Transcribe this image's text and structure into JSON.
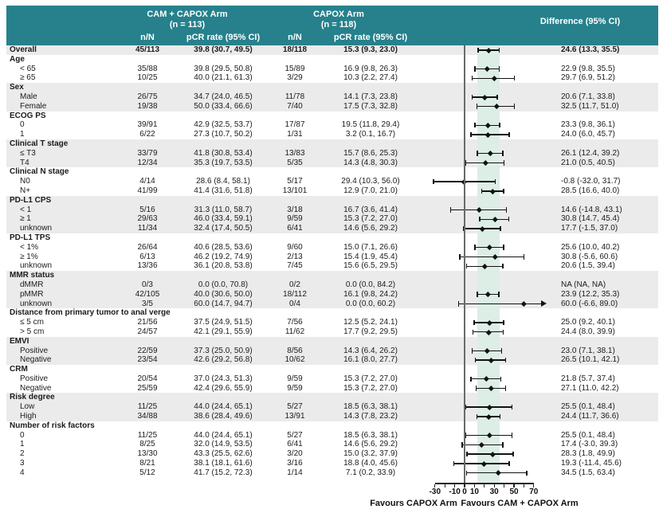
{
  "header": {
    "arm1_name": "CAM + CAPOX Arm",
    "arm1_n": "(n = 113)",
    "arm2_name": "CAPOX Arm",
    "arm2_n": "(n = 118)",
    "col_n1": "n/N",
    "col_pcr1": "pCR rate (95% CI)",
    "col_n2": "n/N",
    "col_pcr2": "pCR rate (95% CI)",
    "col_diff": "Difference (95% CI)"
  },
  "colors": {
    "header_teal": "#26818C",
    "stripe_gray": "#EBEBEB",
    "band_mint": "#DCEEE6",
    "marker_black": "#121212",
    "zero_line_gray": "#6A6A6A"
  },
  "chart_data": {
    "type": "scatter",
    "subtype": "forest-plot",
    "title": "",
    "xlabel_left": "Favours CAPOX Arm",
    "xlabel_right": "Favours CAM + CAPOX Arm",
    "axis": {
      "min": -30,
      "max": 70,
      "tick_values": [
        -30,
        -20,
        -10,
        0,
        10,
        20,
        30,
        40,
        50,
        60,
        70
      ],
      "labeled_ticks": [
        -30,
        -10,
        0,
        10,
        30,
        50,
        70
      ],
      "grid": false
    },
    "shaded_band": {
      "from": 13.3,
      "to": 35.5
    },
    "rows": [
      {
        "type": "data",
        "label": "Overall",
        "bold": true,
        "n1": "45/113",
        "pcr1": "39.8 (30.7, 49.5)",
        "n2": "18/118",
        "pcr2": "15.3 (9.3, 23.0)",
        "diff": "24.6 (13.3, 35.5)",
        "est": 24.6,
        "lo": 13.3,
        "hi": 35.5
      },
      {
        "type": "group",
        "label": "Age"
      },
      {
        "type": "data",
        "label": "< 65",
        "n1": "35/88",
        "pcr1": "39.8 (29.5, 50.8)",
        "n2": "15/89",
        "pcr2": "16.9 (9.8, 26.3)",
        "diff": "22.9 (9.8, 35.5)",
        "est": 22.9,
        "lo": 9.8,
        "hi": 35.5
      },
      {
        "type": "data",
        "label": "≥ 65",
        "n1": "10/25",
        "pcr1": "40.0 (21.1, 61.3)",
        "n2": "3/29",
        "pcr2": "10.3 (2.2, 27.4)",
        "diff": "29.7 (6.9, 51.2)",
        "est": 29.7,
        "lo": 6.9,
        "hi": 51.2
      },
      {
        "type": "group",
        "label": "Sex"
      },
      {
        "type": "data",
        "label": "Male",
        "n1": "26/75",
        "pcr1": "34.7 (24.0, 46.5)",
        "n2": "11/78",
        "pcr2": "14.1 (7.3, 23.8)",
        "diff": "20.6 (7.1, 33.8)",
        "est": 20.6,
        "lo": 7.1,
        "hi": 33.8
      },
      {
        "type": "data",
        "label": "Female",
        "n1": "19/38",
        "pcr1": "50.0 (33.4, 66.6)",
        "n2": "7/40",
        "pcr2": "17.5 (7.3, 32.8)",
        "diff": "32.5 (11.7, 51.0)",
        "est": 32.5,
        "lo": 11.7,
        "hi": 51.0
      },
      {
        "type": "group",
        "label": "ECOG PS"
      },
      {
        "type": "data",
        "label": "0",
        "n1": "39/91",
        "pcr1": "42.9 (32.5, 53.7)",
        "n2": "17/87",
        "pcr2": "19.5 (11.8, 29.4)",
        "diff": "23.3 (9.8, 36.1)",
        "est": 23.3,
        "lo": 9.8,
        "hi": 36.1
      },
      {
        "type": "data",
        "label": "1",
        "n1": "6/22",
        "pcr1": "27.3 (10.7, 50.2)",
        "n2": "1/31",
        "pcr2": "3.2 (0.1, 16.7)",
        "diff": "24.0 (6.0, 45.7)",
        "est": 24.0,
        "lo": 6.0,
        "hi": 45.7
      },
      {
        "type": "group",
        "label": "Clinical T stage"
      },
      {
        "type": "data",
        "label": "≤ T3",
        "n1": "33/79",
        "pcr1": "41.8 (30.8, 53.4)",
        "n2": "13/83",
        "pcr2": "15.7 (8.6, 25.3)",
        "diff": "26.1 (12.4, 39.2)",
        "est": 26.1,
        "lo": 12.4,
        "hi": 39.2
      },
      {
        "type": "data",
        "label": "T4",
        "n1": "12/34",
        "pcr1": "35.3 (19.7, 53.5)",
        "n2": "5/35",
        "pcr2": "14.3 (4.8, 30.3)",
        "diff": "21.0 (0.5, 40.5)",
        "est": 21.0,
        "lo": 0.5,
        "hi": 40.5
      },
      {
        "type": "group",
        "label": "Clinical N stage"
      },
      {
        "type": "data",
        "label": "N0",
        "n1": "4/14",
        "pcr1": "28.6 (8.4, 58.1)",
        "n2": "5/17",
        "pcr2": "29.4 (10.3, 56.0)",
        "diff": "-0.8 (-32.0, 31.7)",
        "est": -0.8,
        "lo": -32.0,
        "hi": 31.7
      },
      {
        "type": "data",
        "label": "N+",
        "n1": "41/99",
        "pcr1": "41.4 (31.6, 51.8)",
        "n2": "13/101",
        "pcr2": "12.9 (7.0, 21.0)",
        "diff": "28.5 (16.6, 40.0)",
        "est": 28.5,
        "lo": 16.6,
        "hi": 40.0
      },
      {
        "type": "group",
        "label": "PD-L1 CPS"
      },
      {
        "type": "data",
        "label": "< 1",
        "n1": "5/16",
        "pcr1": "31.3 (11.0, 58.7)",
        "n2": "3/18",
        "pcr2": "16.7 (3.6, 41.4)",
        "diff": "14.6 (-14.8, 43.1)",
        "est": 14.6,
        "lo": -14.8,
        "hi": 43.1
      },
      {
        "type": "data",
        "label": "≥ 1",
        "n1": "29/63",
        "pcr1": "46.0 (33.4, 59.1)",
        "n2": "9/59",
        "pcr2": "15.3 (7.2, 27.0)",
        "diff": "30.8 (14.7, 45.4)",
        "est": 30.8,
        "lo": 14.7,
        "hi": 45.4
      },
      {
        "type": "data",
        "label": "unknown",
        "n1": "11/34",
        "pcr1": "32.4 (17.4, 50.5)",
        "n2": "6/41",
        "pcr2": "14.6 (5.6, 29.2)",
        "diff": "17.7 (-1.5, 37.0)",
        "est": 17.7,
        "lo": -1.5,
        "hi": 37.0
      },
      {
        "type": "group",
        "label": "PD-L1 TPS"
      },
      {
        "type": "data",
        "label": "< 1%",
        "n1": "26/64",
        "pcr1": "40.6 (28.5, 53.6)",
        "n2": "9/60",
        "pcr2": "15.0 (7.1, 26.6)",
        "diff": "25.6 (10.0, 40.2)",
        "est": 25.6,
        "lo": 10.0,
        "hi": 40.2
      },
      {
        "type": "data",
        "label": "≥ 1%",
        "n1": "6/13",
        "pcr1": "46.2 (19.2, 74.9)",
        "n2": "2/13",
        "pcr2": "15.4 (1.9, 45.4)",
        "diff": "30.8 (-5.6, 60.6)",
        "est": 30.8,
        "lo": -5.6,
        "hi": 60.6
      },
      {
        "type": "data",
        "label": "unknown",
        "n1": "13/36",
        "pcr1": "36.1 (20.8, 53.8)",
        "n2": "7/45",
        "pcr2": "15.6 (6.5, 29.5)",
        "diff": "20.6 (1.5, 39.4)",
        "est": 20.6,
        "lo": 1.5,
        "hi": 39.4
      },
      {
        "type": "group",
        "label": "MMR status"
      },
      {
        "type": "data",
        "label": "dMMR",
        "n1": "0/3",
        "pcr1": "0.0 (0.0, 70.8)",
        "n2": "0/2",
        "pcr2": "0.0 (0.0, 84.2)",
        "diff": "NA (NA, NA)",
        "est": null,
        "lo": null,
        "hi": null
      },
      {
        "type": "data",
        "label": "pMMR",
        "n1": "42/105",
        "pcr1": "40.0 (30.6, 50.0)",
        "n2": "18/112",
        "pcr2": "16.1 (9.8, 24.2)",
        "diff": "23.9 (12.2, 35.3)",
        "est": 23.9,
        "lo": 12.2,
        "hi": 35.3
      },
      {
        "type": "data",
        "label": "unknown",
        "n1": "3/5",
        "pcr1": "60.0 (14.7, 94.7)",
        "n2": "0/4",
        "pcr2": "0.0 (0.0, 60.2)",
        "diff": "60.0 (-6.6, 89.0)",
        "est": 60.0,
        "lo": -6.6,
        "hi": 89.0,
        "arrow_hi": true
      },
      {
        "type": "group",
        "label": "Distance from primary tumor to anal verge"
      },
      {
        "type": "data",
        "label": "≤ 5 cm",
        "n1": "21/56",
        "pcr1": "37.5 (24.9, 51.5)",
        "n2": "7/56",
        "pcr2": "12.5 (5.2, 24.1)",
        "diff": "25.0 (9.2, 40.1)",
        "est": 25.0,
        "lo": 9.2,
        "hi": 40.1
      },
      {
        "type": "data",
        "label": "> 5 cm",
        "n1": "24/57",
        "pcr1": "42.1 (29.1, 55.9)",
        "n2": "11/62",
        "pcr2": "17.7 (9.2, 29.5)",
        "diff": "24.4 (8.0, 39.9)",
        "est": 24.4,
        "lo": 8.0,
        "hi": 39.9
      },
      {
        "type": "group",
        "label": "EMVI"
      },
      {
        "type": "data",
        "label": "Positive",
        "n1": "22/59",
        "pcr1": "37.3 (25.0, 50.9)",
        "n2": "8/56",
        "pcr2": "14.3 (6.4, 26.2)",
        "diff": "23.0 (7.1, 38.1)",
        "est": 23.0,
        "lo": 7.1,
        "hi": 38.1
      },
      {
        "type": "data",
        "label": "Negative",
        "n1": "23/54",
        "pcr1": "42.6 (29.2, 56.8)",
        "n2": "10/62",
        "pcr2": "16.1 (8.0, 27.7)",
        "diff": "26.5 (10.1, 42.1)",
        "est": 26.5,
        "lo": 10.1,
        "hi": 42.1
      },
      {
        "type": "group",
        "label": "CRM"
      },
      {
        "type": "data",
        "label": "Positive",
        "n1": "20/54",
        "pcr1": "37.0 (24.3, 51.3)",
        "n2": "9/59",
        "pcr2": "15.3 (7.2, 27.0)",
        "diff": "21.8 (5.7, 37.4)",
        "est": 21.8,
        "lo": 5.7,
        "hi": 37.4
      },
      {
        "type": "data",
        "label": "Negative",
        "n1": "25/59",
        "pcr1": "42.4 (29.6, 55.9)",
        "n2": "9/59",
        "pcr2": "15.3 (7.2, 27.0)",
        "diff": "27.1 (11.0, 42.2)",
        "est": 27.1,
        "lo": 11.0,
        "hi": 42.2
      },
      {
        "type": "group",
        "label": "Risk degree"
      },
      {
        "type": "data",
        "label": "Low",
        "n1": "11/25",
        "pcr1": "44.0 (24.4, 65.1)",
        "n2": "5/27",
        "pcr2": "18.5 (6.3, 38.1)",
        "diff": "25.5 (0.1, 48.4)",
        "est": 25.5,
        "lo": 0.1,
        "hi": 48.4
      },
      {
        "type": "data",
        "label": "High",
        "n1": "34/88",
        "pcr1": "38.6 (28.4, 49.6)",
        "n2": "13/91",
        "pcr2": "14.3 (7.8, 23.2)",
        "diff": "24.4 (11.7, 36.6)",
        "est": 24.4,
        "lo": 11.7,
        "hi": 36.6
      },
      {
        "type": "group",
        "label": "Number of risk factors"
      },
      {
        "type": "data",
        "label": "0",
        "n1": "11/25",
        "pcr1": "44.0 (24.4, 65.1)",
        "n2": "5/27",
        "pcr2": "18.5 (6.3, 38.1)",
        "diff": "25.5 (0.1, 48.4)",
        "est": 25.5,
        "lo": 0.1,
        "hi": 48.4
      },
      {
        "type": "data",
        "label": "1",
        "n1": "8/25",
        "pcr1": "32.0 (14.9, 53.5)",
        "n2": "6/41",
        "pcr2": "14.6 (5.6, 29.2)",
        "diff": "17.4 (-3.0, 39.3)",
        "est": 17.4,
        "lo": -3.0,
        "hi": 39.3
      },
      {
        "type": "data",
        "label": "2",
        "n1": "13/30",
        "pcr1": "43.3 (25.5, 62.6)",
        "n2": "3/20",
        "pcr2": "15.0 (3.2, 37.9)",
        "diff": "28.3 (1.8, 49.9)",
        "est": 28.3,
        "lo": 1.8,
        "hi": 49.9
      },
      {
        "type": "data",
        "label": "3",
        "n1": "8/21",
        "pcr1": "38.1 (18.1, 61.6)",
        "n2": "3/16",
        "pcr2": "18.8 (4.0, 45.6)",
        "diff": "19.3 (-11.4, 45.6)",
        "est": 19.3,
        "lo": -11.4,
        "hi": 45.6
      },
      {
        "type": "data",
        "label": "4",
        "n1": "5/12",
        "pcr1": "41.7 (15.2, 72.3)",
        "n2": "1/14",
        "pcr2": "7.1 (0.2, 33.9)",
        "diff": "34.5 (1.5, 63.4)",
        "est": 34.5,
        "lo": 1.5,
        "hi": 63.4
      }
    ]
  }
}
